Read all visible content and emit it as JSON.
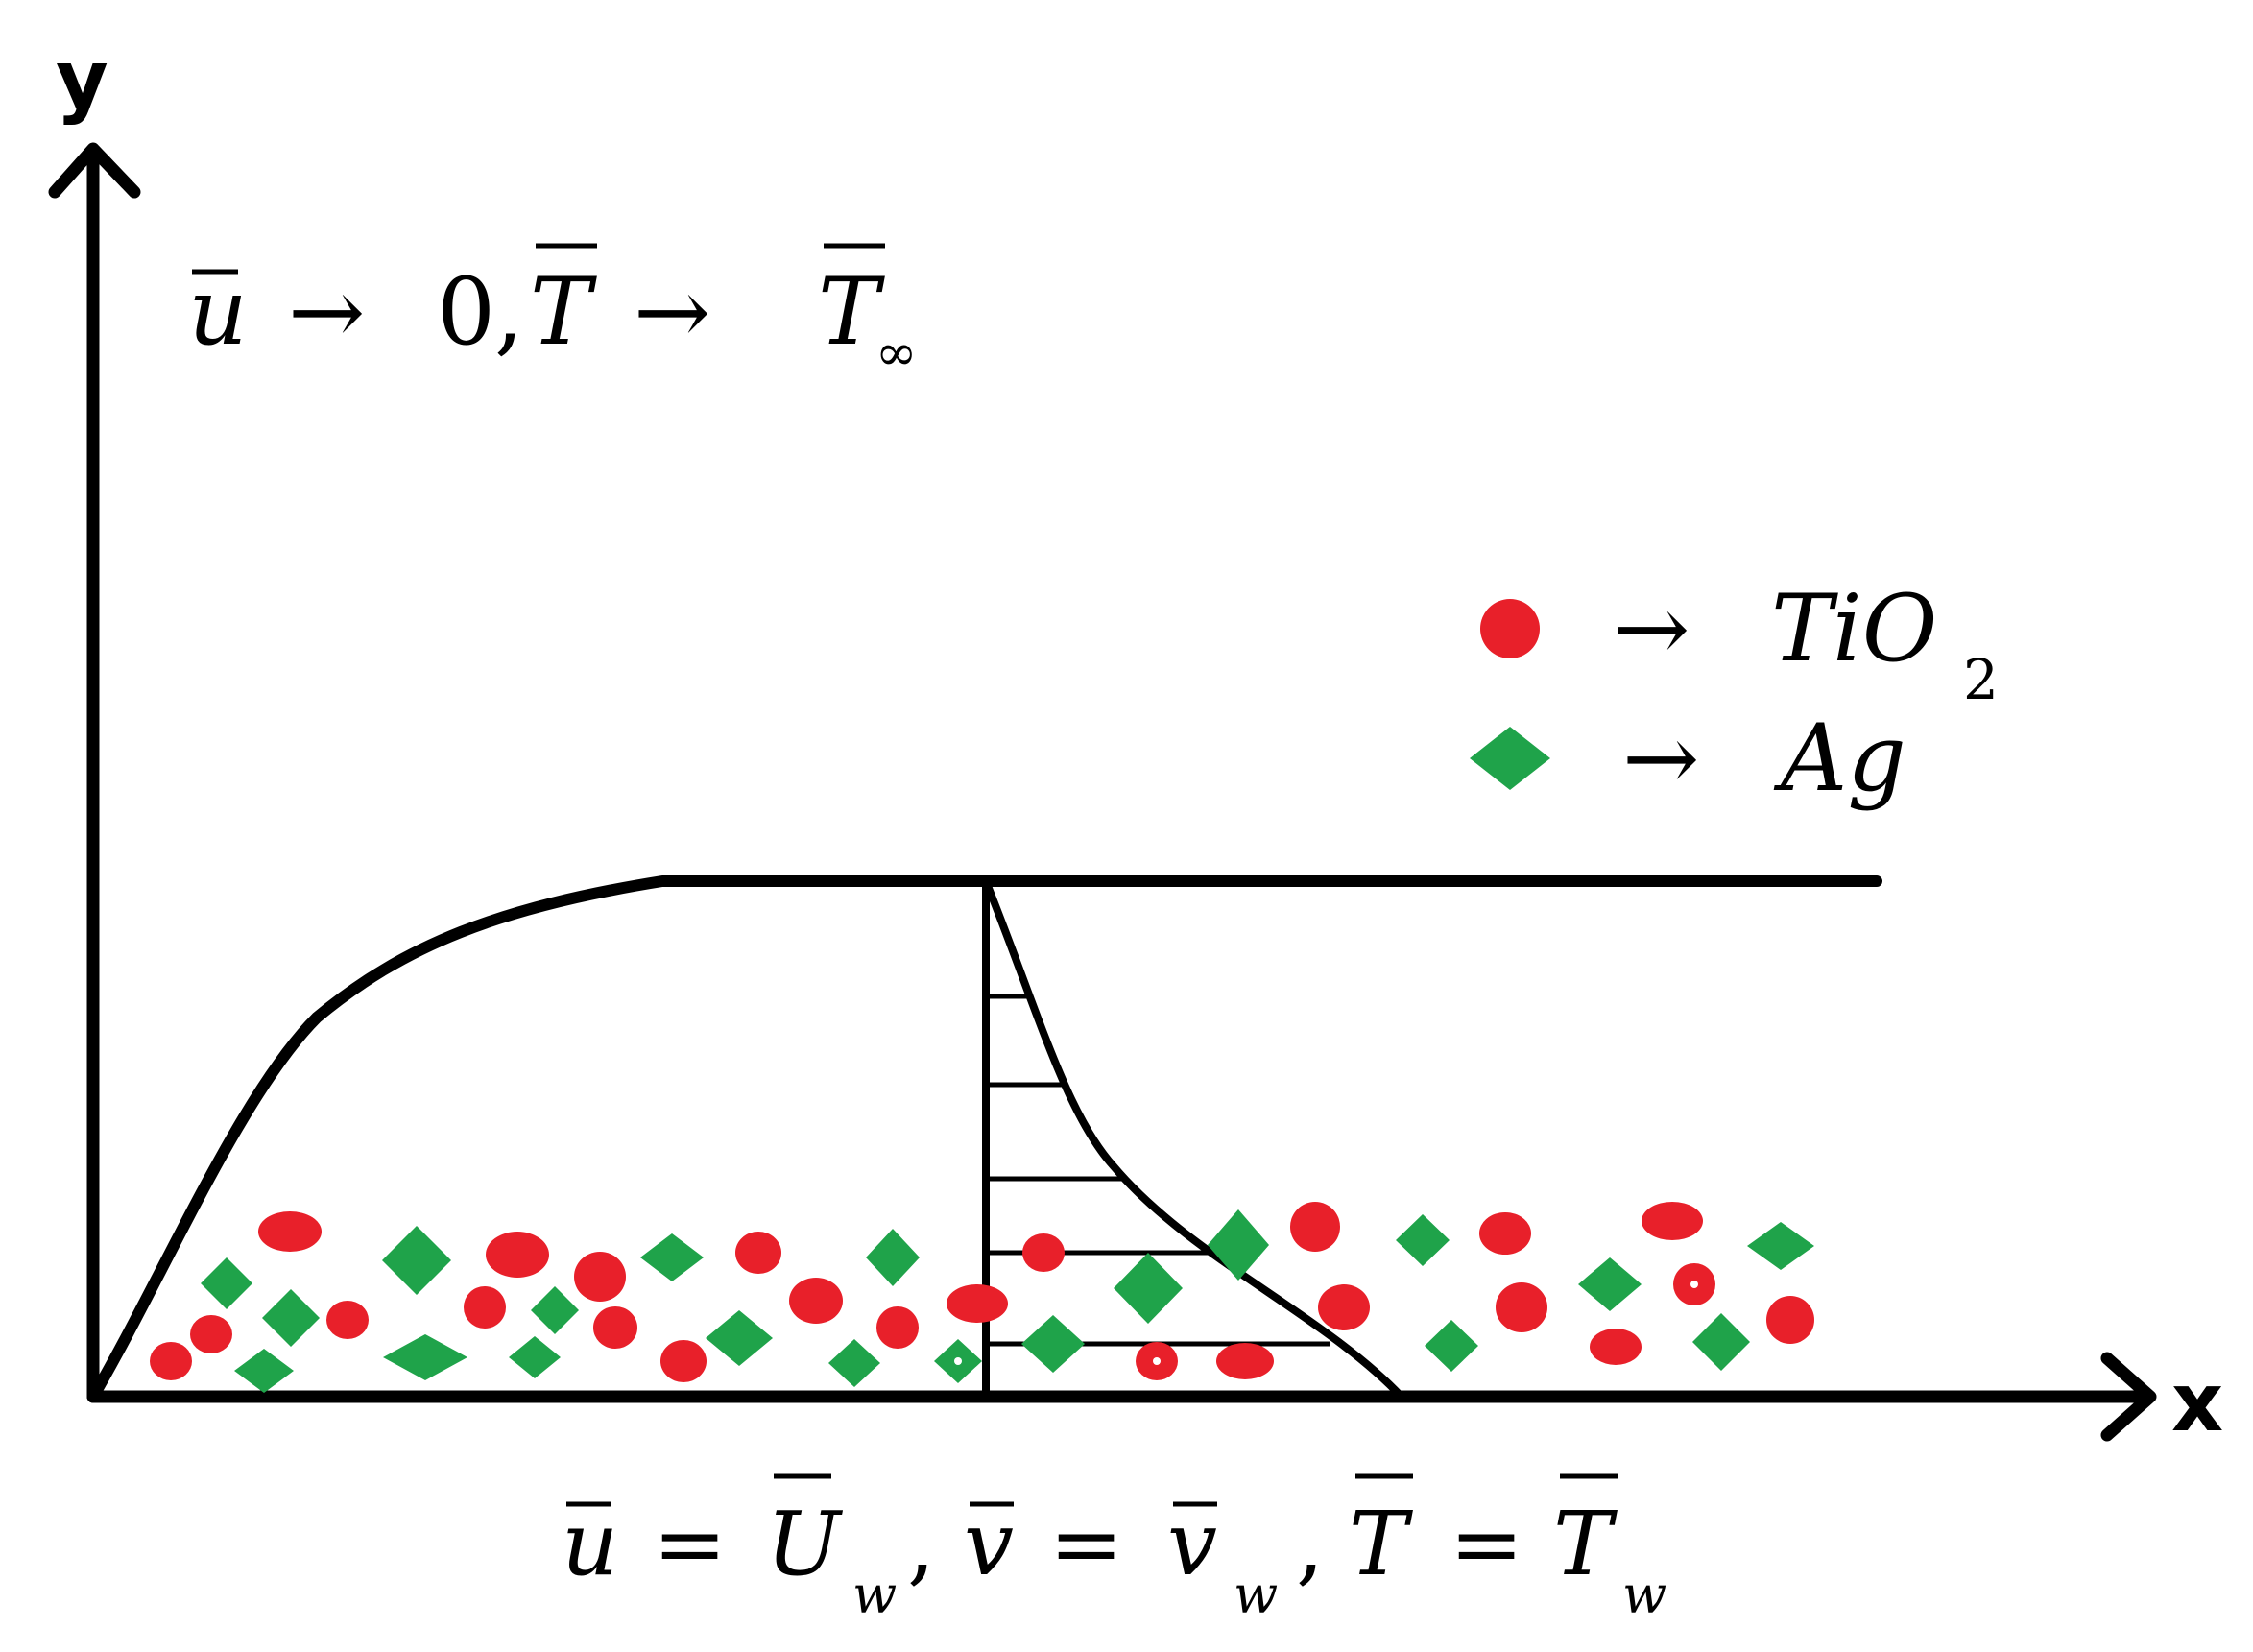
{
  "axes": {
    "x_label": "x",
    "y_label": "y"
  },
  "top_condition": {
    "u": "u",
    "arrow1": "→",
    "zero": "0",
    "comma": ",",
    "T": "T",
    "arrow2": "→",
    "T_inf": "T",
    "inf_sub": "∞"
  },
  "bottom_condition": {
    "u": "u",
    "eq1": "=",
    "U": "U",
    "w1": "w",
    "comma1": ",",
    "v": "v",
    "eq2": "=",
    "v_w": "v",
    "w2": "w",
    "comma2": ",",
    "T": "T",
    "eq3": "=",
    "T_w": "T",
    "w3": "w"
  },
  "legend": {
    "tio2": {
      "arrow": "→",
      "label": "TiO",
      "sub": "2",
      "color": "#e8202a",
      "shape": "circle"
    },
    "ag": {
      "arrow": "→",
      "label": "Ag",
      "color": "#1fa34a",
      "shape": "diamond"
    }
  }
}
